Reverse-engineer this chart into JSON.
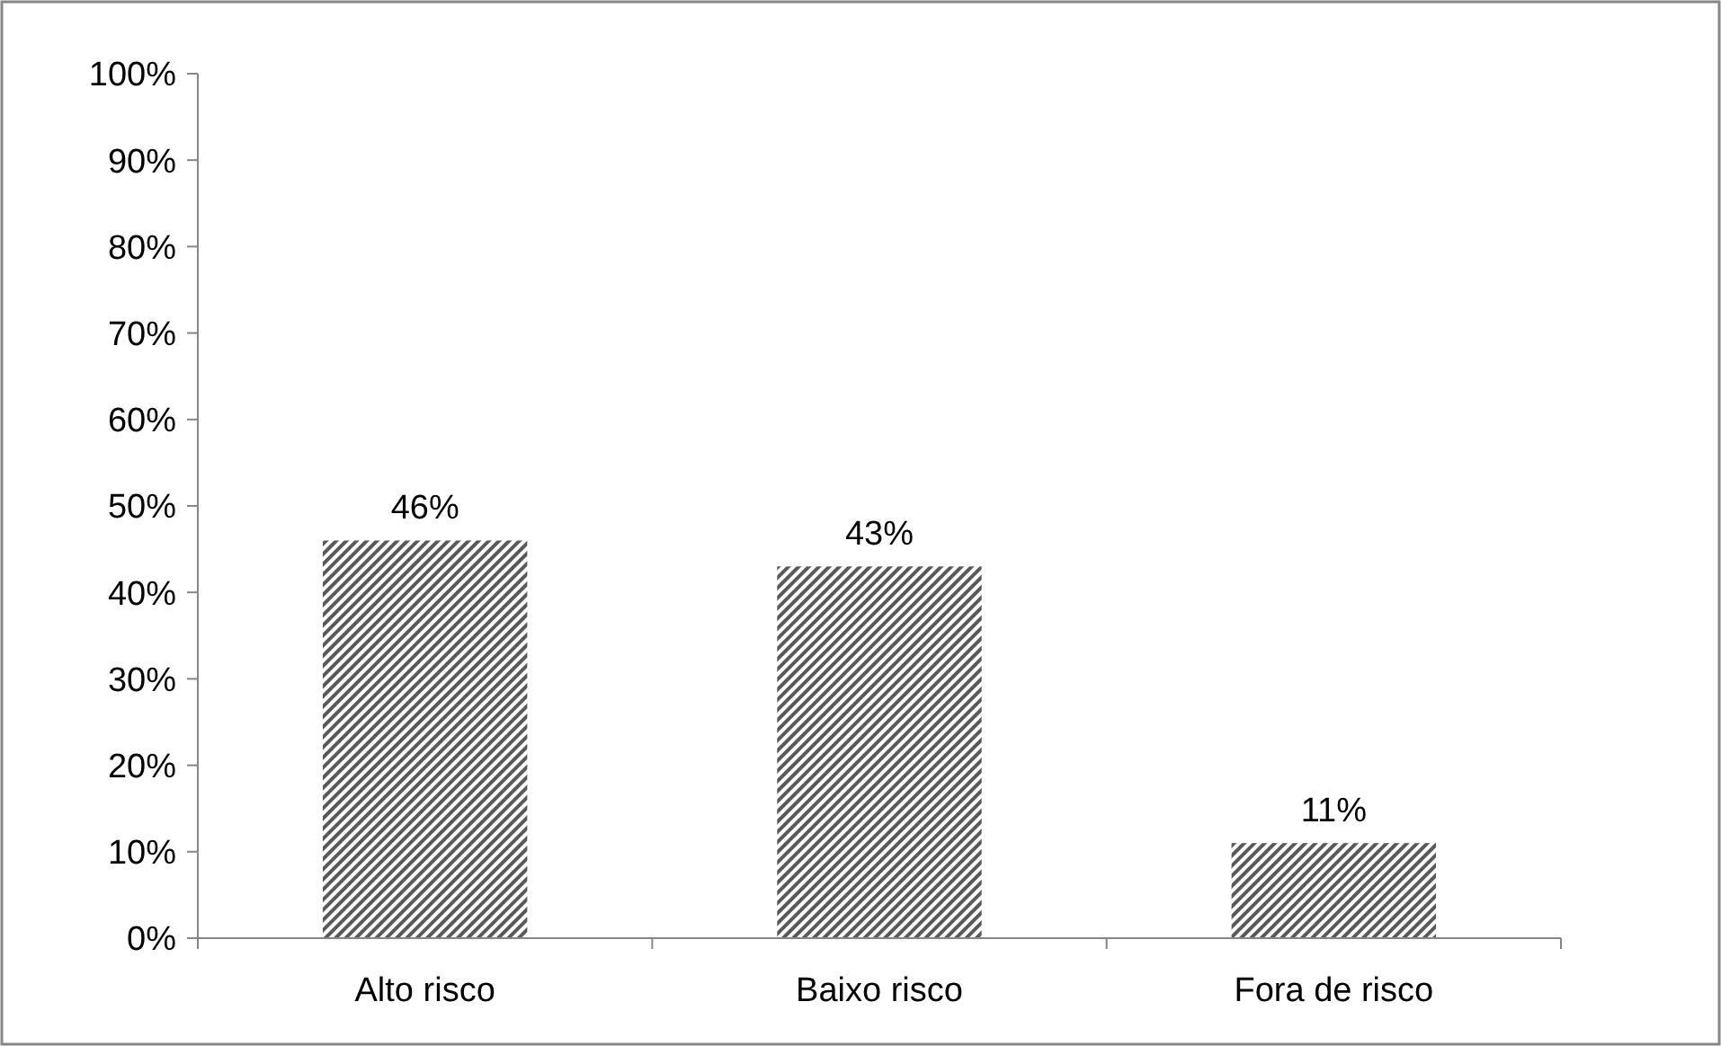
{
  "chart_data": {
    "type": "bar",
    "categories": [
      "Alto risco",
      "Baixo risco",
      "Fora de risco"
    ],
    "values": [
      46,
      43,
      11
    ],
    "value_labels": [
      "46%",
      "43%",
      "11%"
    ],
    "color": "#595959",
    "ylim": [
      0,
      100
    ],
    "yticks": [
      {
        "value": 0,
        "label": "0%"
      },
      {
        "value": 10,
        "label": "10%"
      },
      {
        "value": 20,
        "label": "20%"
      },
      {
        "value": 30,
        "label": "30%"
      },
      {
        "value": 40,
        "label": "40%"
      },
      {
        "value": 50,
        "label": "50%"
      },
      {
        "value": 60,
        "label": "60%"
      },
      {
        "value": 70,
        "label": "70%"
      },
      {
        "value": 80,
        "label": "80%"
      },
      {
        "value": 90,
        "label": "90%"
      },
      {
        "value": 100,
        "label": "100%"
      }
    ],
    "grid": false
  }
}
